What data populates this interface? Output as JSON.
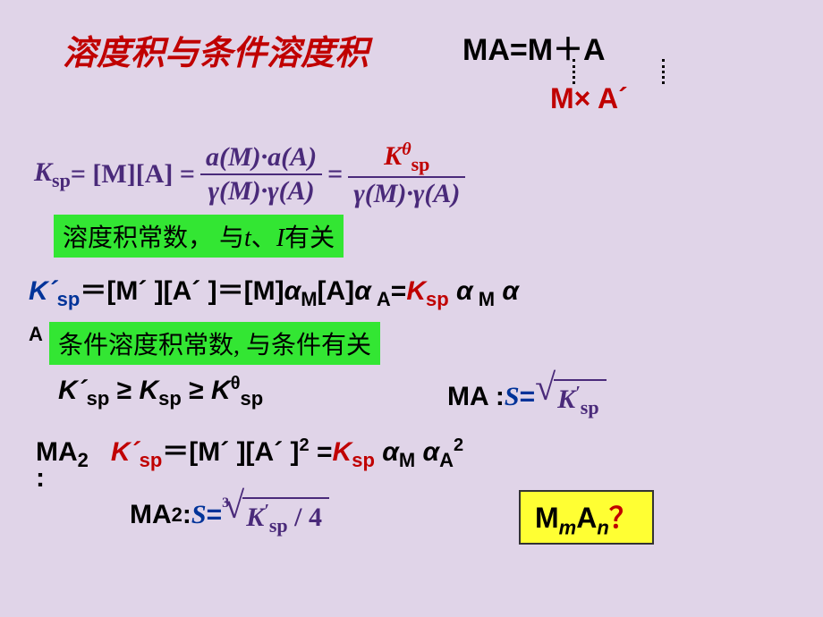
{
  "colors": {
    "background": "#e0d4e8",
    "title_red": "#c00000",
    "eq_purple": "#4a2a7a",
    "highlight_green": "#33e633",
    "highlight_yellow": "#ffff33",
    "blue": "#003399"
  },
  "fonts": {
    "title_size_pt": 38,
    "body_size_pt": 30,
    "sub_size_pt": 22
  },
  "title": "溶度积与条件溶度积",
  "top_right": {
    "dissociation": "MA=M＋A",
    "product": "M× A´"
  },
  "ksp_equation": {
    "lhs_K": "K",
    "lhs_sub": "sp",
    "eq": " = [M][A] = ",
    "frac1_num": "a(M)·a(A)",
    "frac1_den": "γ(M)·γ(A)",
    "eq2": " = ",
    "frac2_num_K": "K",
    "frac2_num_sub": "sp",
    "frac2_num_sup": "θ",
    "frac2_den": "γ(M)·γ(A)"
  },
  "green_note1_prefix": "溶度积常数， 与",
  "green_note1_t": "t",
  "green_note1_mid": "、",
  "green_note1_I": "I",
  "green_note1_suffix": "有关",
  "kprime_line": {
    "K": "K´",
    "sp": "sp",
    "part1": "＝[M´ ][A´ ]＝[M]",
    "aM": "α",
    "aM_sub": "M",
    "part2": "[A]",
    "aA": "α",
    "aA_sub": " A",
    "eq": "=",
    "Ksp": "K",
    "Ksp_sub": "sp",
    "tail_a1": " α",
    "tail_a1_sub": " M",
    "tail_a2": " α",
    "tail_end": "A"
  },
  "green_note2": "条件溶度积常数, 与条件有关",
  "inequality": {
    "p1": "K´",
    "p1s": "sp",
    "ge1": "≥ ",
    "p2": "K",
    "p2s": "sp",
    "ge2": " ≥ ",
    "p3": "K",
    "p3sup": "θ",
    "p3s": "sp"
  },
  "ma_solubility": {
    "label": "MA : ",
    "S": "S",
    "eq": " = ",
    "root_content_K": "K",
    "root_content_prime": "′",
    "root_content_sub": "sp"
  },
  "ma2_line": {
    "label": "MA",
    "label_sub": "2",
    "colon": "",
    "K": "K´",
    "K_sub": "sp",
    "mid": "＝[M´ ][A´ ]",
    "pow": "2",
    "eq": " =",
    "Ksp": "K",
    "Ksp_sub": "sp",
    "aM": " α",
    "aM_sub": "M",
    "aA": " α",
    "aA_sub": "A",
    "aA_pow": "2"
  },
  "ma2_colon": ":",
  "ma2_solubility": {
    "label": "MA",
    "label_sub": "2",
    "post": " : ",
    "S": "S",
    "eq": " = ",
    "root_index": "3",
    "root_K": "K",
    "root_prime": "′",
    "root_sub": "sp",
    "root_tail": " / 4"
  },
  "mman": {
    "M": "M",
    "m": "m",
    "A": "A",
    "n": "n",
    "q": "？"
  }
}
